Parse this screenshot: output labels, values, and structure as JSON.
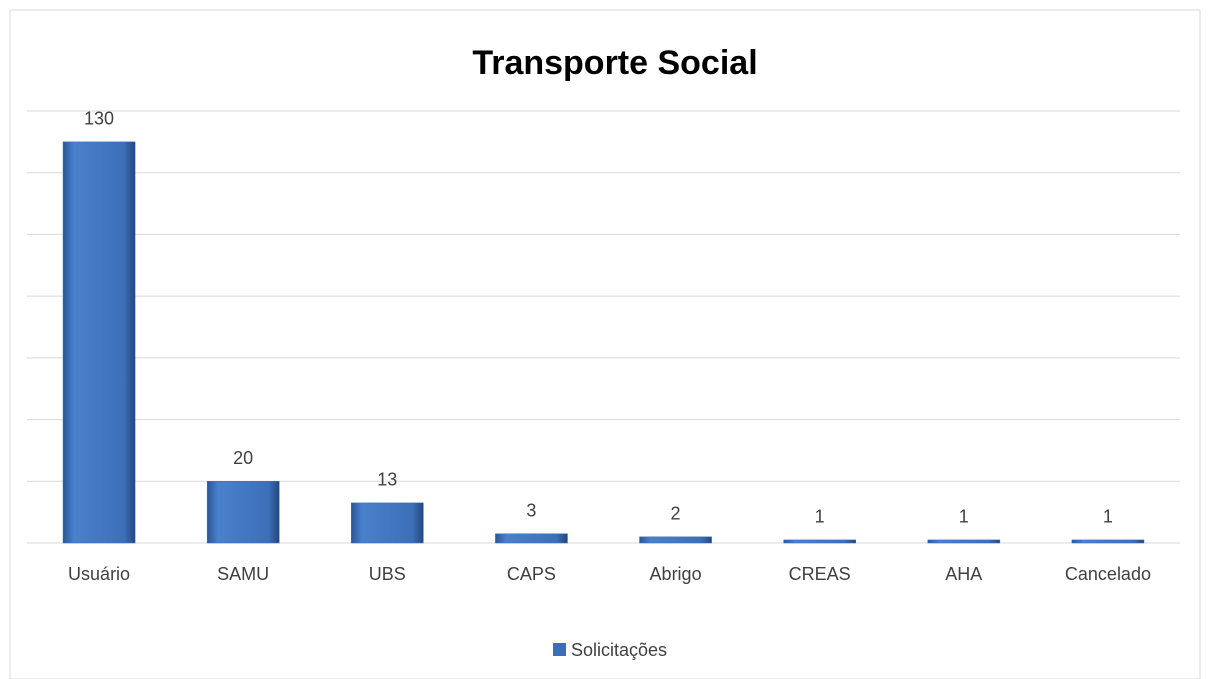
{
  "chart_data": {
    "type": "bar",
    "title": "Transporte Social",
    "categories": [
      "Usuário",
      "SAMU",
      "UBS",
      "CAPS",
      "Abrigo",
      "CREAS",
      "AHA",
      "Cancelado"
    ],
    "series": [
      {
        "name": "Solicitações",
        "color": "#3c6fb8",
        "values": [
          130,
          20,
          13,
          3,
          2,
          1,
          1,
          1
        ]
      }
    ],
    "ylim": [
      0,
      140
    ],
    "yticks": [
      0,
      20,
      40,
      60,
      80,
      100,
      120,
      140
    ],
    "grid": true
  }
}
